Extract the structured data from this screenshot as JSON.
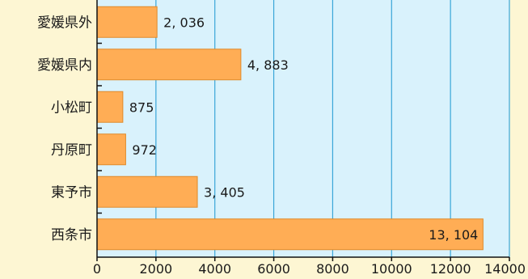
{
  "chart_data": {
    "type": "bar",
    "orientation": "horizontal",
    "categories": [
      "愛媛県外",
      "愛媛県内",
      "小松町",
      "丹原町",
      "東予市",
      "西条市"
    ],
    "values": [
      2036,
      4883,
      875,
      972,
      3405,
      13104
    ],
    "value_labels": [
      "2, 036",
      "4, 883",
      "875",
      "972",
      "3, 405",
      "13, 104"
    ],
    "xlim": [
      0,
      14000
    ],
    "x_ticks": [
      0,
      2000,
      4000,
      6000,
      8000,
      10000,
      12000,
      14000
    ],
    "x_tick_labels": [
      "0",
      "2000",
      "4000",
      "6000",
      "8000",
      "10000",
      "12000",
      "14000"
    ],
    "grid": "vertical",
    "colors": {
      "bar": "#ffad55",
      "bar_edge": "#e08a2a",
      "plot_bg": "#d9f2fc",
      "page_bg": "#fdf6d3",
      "grid": "#3aa6d8",
      "axis": "#111111"
    }
  }
}
